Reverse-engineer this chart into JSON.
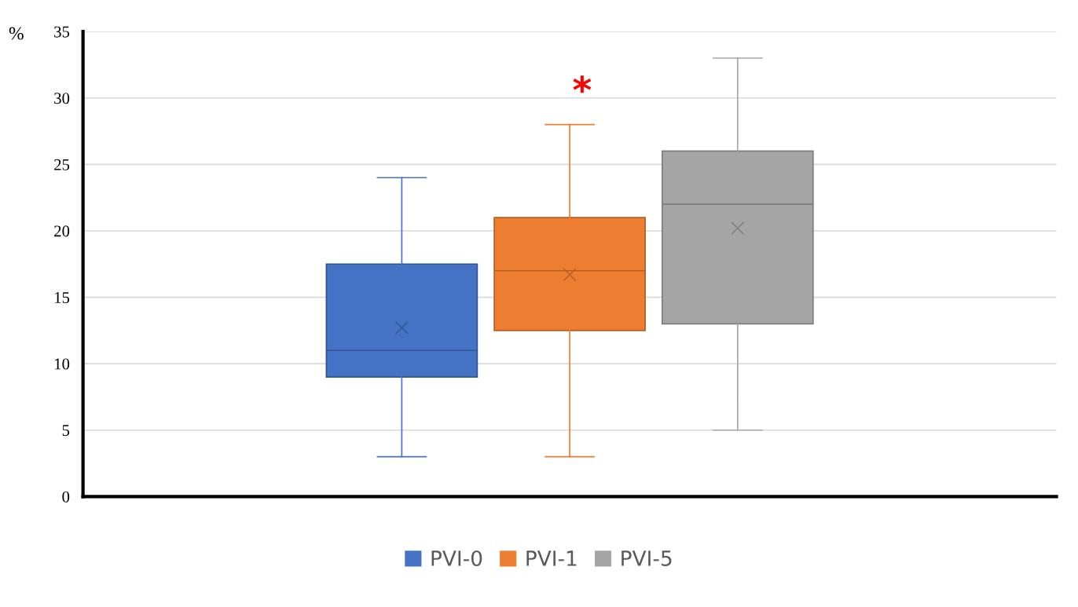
{
  "chart_data": {
    "type": "box",
    "ylabel": "%",
    "categories": [
      null
    ],
    "ylim": [
      0,
      35
    ],
    "yticks": [
      0,
      5,
      10,
      15,
      20,
      25,
      30,
      35
    ],
    "grid": "y",
    "legend": "bottom",
    "marker": "cross",
    "series": [
      {
        "name": "PVI-0",
        "color": "#4472c4",
        "boxes": [
          {
            "low": 3,
            "q1": 9,
            "median": 11,
            "q3": 17.5,
            "high": 24,
            "mean": 12.7
          }
        ]
      },
      {
        "name": "PVI-1",
        "color": "#ed7d31",
        "boxes": [
          {
            "low": 3,
            "q1": 12.5,
            "median": 17,
            "q3": 21,
            "high": 28,
            "mean": 16.7
          }
        ]
      },
      {
        "name": "PVI-5",
        "color": "#a5a5a5",
        "boxes": [
          {
            "low": 5,
            "q1": 13,
            "median": 22,
            "q3": 26,
            "high": 33,
            "mean": 20.2
          }
        ]
      }
    ],
    "annotations": [
      "*"
    ]
  }
}
